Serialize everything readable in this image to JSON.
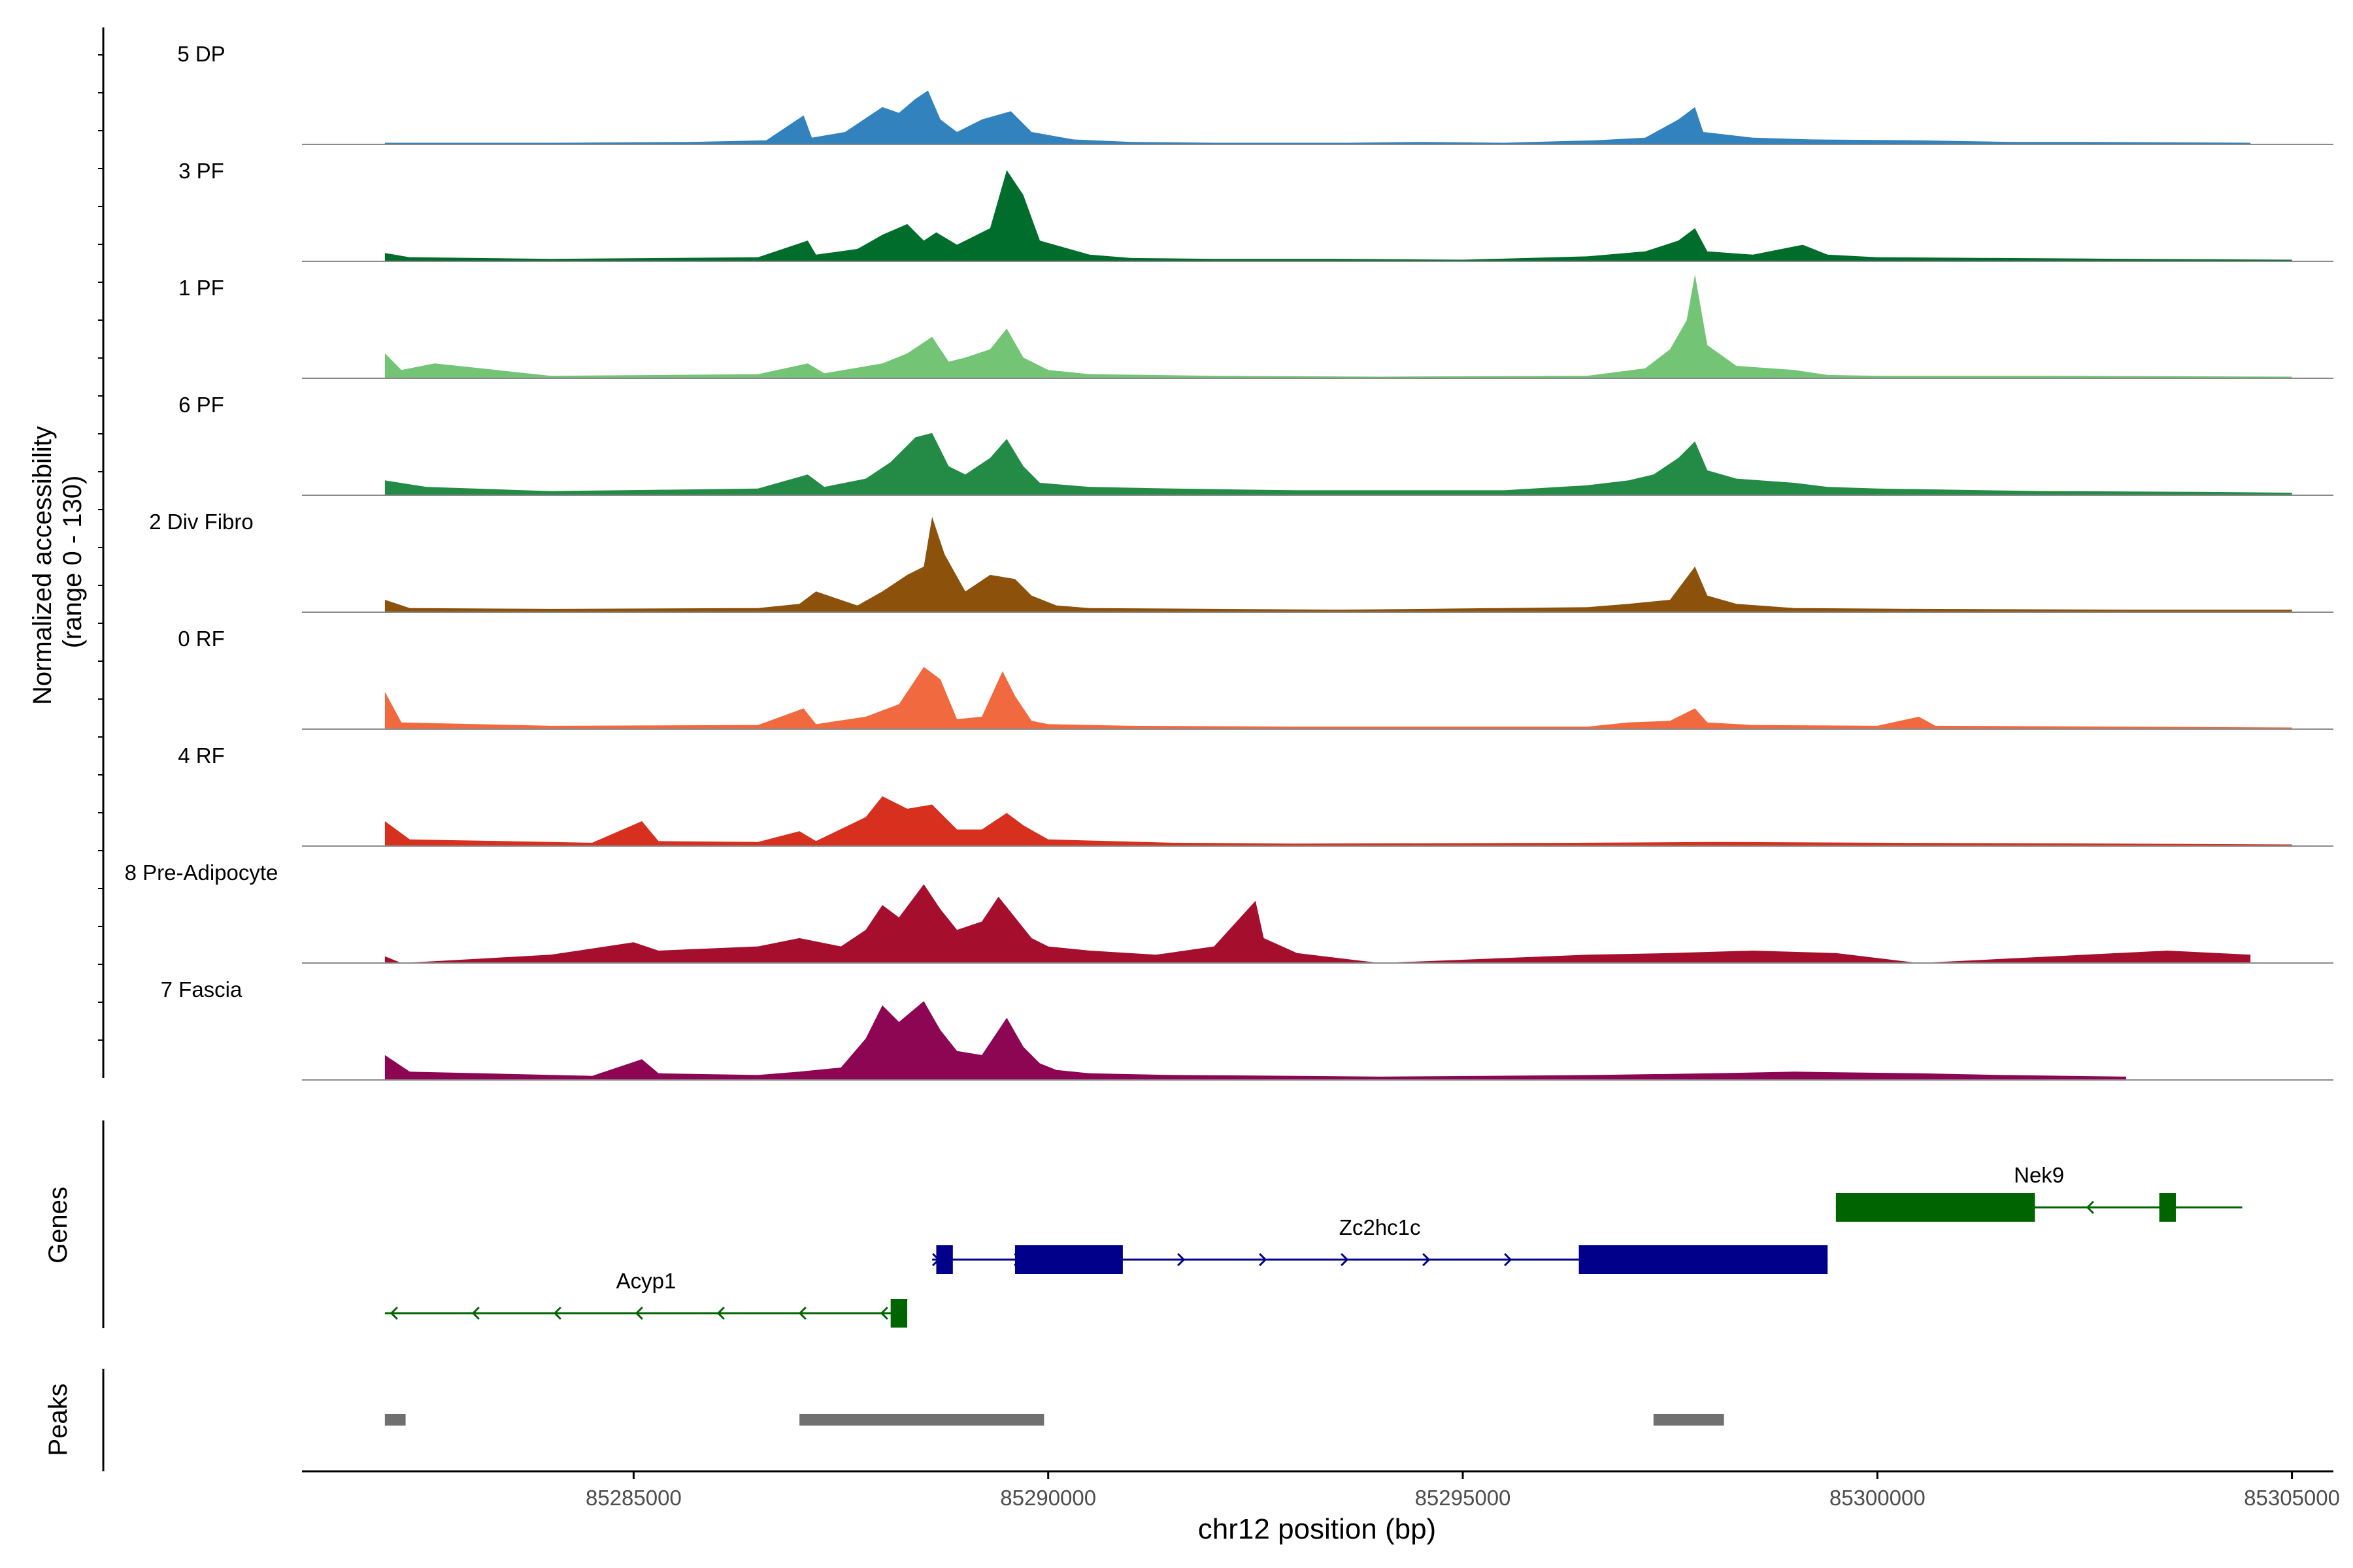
{
  "chart_data": {
    "type": "area",
    "y_axis_title_line1": "Normalized accessibility",
    "y_axis_title_line2": "(range 0 - 130)",
    "xlabel": "chr12 position (bp)",
    "xlim": [
      85281000,
      85305500
    ],
    "ylim": [
      0,
      130
    ],
    "x_ticks": [
      85285000,
      85290000,
      85295000,
      85300000,
      85305000
    ],
    "x_tick_labels": [
      "85285000",
      "85290000",
      "85295000",
      "85300000",
      "85305000"
    ],
    "tracks": [
      {
        "name": "5 DP",
        "color": "#3182BD",
        "x": [
          85282000,
          85284000,
          85285700,
          85286600,
          85287050,
          85287150,
          85287550,
          85288000,
          85288200,
          85288400,
          85288550,
          85288700,
          85288900,
          85289200,
          85289550,
          85289800,
          85290300,
          85291000,
          85292000,
          85293600,
          85294500,
          85295500,
          85296600,
          85297200,
          85297600,
          85297800,
          85297900,
          85298500,
          85299200,
          85300500,
          85301600,
          85302500,
          85304500
        ],
        "y": [
          2,
          2,
          3,
          5,
          35,
          8,
          15,
          45,
          38,
          55,
          65,
          30,
          15,
          30,
          40,
          15,
          6,
          3,
          2,
          2,
          3,
          2,
          5,
          8,
          30,
          45,
          15,
          8,
          6,
          5,
          3,
          3,
          2
        ]
      },
      {
        "name": "3 PF",
        "color": "#006D2C",
        "x": [
          85282000,
          85282300,
          85284000,
          85286500,
          85287100,
          85287200,
          85287700,
          85288000,
          85288300,
          85288500,
          85288650,
          85288900,
          85289300,
          85289500,
          85289700,
          85289900,
          85290500,
          85291000,
          85292000,
          85293500,
          85295000,
          85296500,
          85297200,
          85297600,
          85297800,
          85297950,
          85298500,
          85299100,
          85299400,
          85300000,
          85301500,
          85303000,
          85305000
        ],
        "y": [
          10,
          5,
          3,
          5,
          25,
          8,
          15,
          32,
          45,
          25,
          35,
          20,
          40,
          110,
          80,
          25,
          8,
          4,
          3,
          3,
          2,
          6,
          12,
          25,
          40,
          12,
          8,
          20,
          8,
          5,
          4,
          3,
          2
        ]
      },
      {
        "name": "1 PF",
        "color": "#74C476",
        "x": [
          85282000,
          85282200,
          85282600,
          85284000,
          85286500,
          85287100,
          85287300,
          85288000,
          85288300,
          85288600,
          85288800,
          85289000,
          85289300,
          85289500,
          85289700,
          85290000,
          85290500,
          85292000,
          85294000,
          85296500,
          85297200,
          85297500,
          85297700,
          85297800,
          85297950,
          85298300,
          85299000,
          85299400,
          85300000,
          85302000,
          85305000
        ],
        "y": [
          30,
          10,
          18,
          3,
          5,
          18,
          6,
          18,
          30,
          50,
          20,
          25,
          35,
          60,
          25,
          10,
          5,
          3,
          2,
          3,
          12,
          35,
          70,
          125,
          40,
          15,
          10,
          4,
          3,
          3,
          2
        ]
      },
      {
        "name": "6 PF",
        "color": "#238B45",
        "x": [
          85282000,
          85282500,
          85284000,
          85286500,
          85287100,
          85287300,
          85287800,
          85288100,
          85288400,
          85288600,
          85288800,
          85289000,
          85289300,
          85289500,
          85289700,
          85289900,
          85290500,
          85291500,
          85293000,
          85294000,
          85295500,
          85296500,
          85297000,
          85297300,
          85297600,
          85297800,
          85297950,
          85298300,
          85299000,
          85299400,
          85300000,
          85302000,
          85304000,
          85305000
        ],
        "y": [
          18,
          10,
          5,
          8,
          25,
          10,
          20,
          40,
          70,
          75,
          35,
          25,
          45,
          68,
          35,
          15,
          10,
          8,
          6,
          6,
          6,
          12,
          18,
          25,
          45,
          65,
          30,
          20,
          15,
          10,
          8,
          5,
          4,
          3
        ]
      },
      {
        "name": "2 Div Fibro",
        "color": "#8C510A",
        "x": [
          85282000,
          85282300,
          85284000,
          85286500,
          85287000,
          85287200,
          85287700,
          85288000,
          85288300,
          85288500,
          85288600,
          85288750,
          85289000,
          85289300,
          85289600,
          85289800,
          85290100,
          85290500,
          85292000,
          85293500,
          85296500,
          85297000,
          85297500,
          85297800,
          85297950,
          85298300,
          85299000,
          85300500,
          85303000,
          85305000
        ],
        "y": [
          15,
          5,
          4,
          5,
          10,
          25,
          8,
          25,
          45,
          55,
          115,
          70,
          25,
          45,
          40,
          20,
          8,
          5,
          4,
          3,
          6,
          10,
          15,
          55,
          20,
          10,
          5,
          4,
          3,
          3
        ]
      },
      {
        "name": "0 RF",
        "color": "#F16A3F",
        "x": [
          85282000,
          85282200,
          85284000,
          85286500,
          85287050,
          85287200,
          85287800,
          85288200,
          85288500,
          85288700,
          85288900,
          85289200,
          85289450,
          85289600,
          85289800,
          85290000,
          85291000,
          85293000,
          85296500,
          85297000,
          85297500,
          85297800,
          85297950,
          85298500,
          85300000,
          85300500,
          85300700,
          85303000,
          85305000
        ],
        "y": [
          45,
          8,
          4,
          5,
          25,
          6,
          15,
          30,
          75,
          60,
          12,
          15,
          70,
          40,
          10,
          6,
          4,
          3,
          3,
          8,
          10,
          25,
          8,
          5,
          4,
          15,
          4,
          3,
          2
        ]
      },
      {
        "name": "4 RF",
        "color": "#D7301F",
        "x": [
          85282000,
          85282300,
          85284500,
          85285100,
          85285300,
          85286500,
          85287000,
          85287200,
          85287800,
          85288000,
          85288300,
          85288600,
          85288900,
          85289200,
          85289500,
          85289700,
          85290000,
          85291500,
          85293000,
          85296500,
          85298000,
          85300000,
          85303000,
          85305000
        ],
        "y": [
          30,
          8,
          4,
          30,
          6,
          5,
          18,
          6,
          35,
          60,
          45,
          50,
          20,
          20,
          40,
          25,
          8,
          4,
          3,
          4,
          5,
          4,
          3,
          2
        ]
      },
      {
        "name": "8 Pre-Adipocyte",
        "color": "#A50F2D",
        "x": [
          85282000,
          85282200,
          85284000,
          85285000,
          85285300,
          85286500,
          85287000,
          85287500,
          85287800,
          85288000,
          85288200,
          85288500,
          85288700,
          85288900,
          85289200,
          85289400,
          85289600,
          85289800,
          85290000,
          85290500,
          85291300,
          85292000,
          85292500,
          85292600,
          85293000,
          85294000,
          85296500,
          85297500,
          85298500,
          85299500,
          85300500,
          85303500,
          85304500
        ],
        "y": [
          8,
          0,
          10,
          25,
          15,
          20,
          30,
          20,
          40,
          70,
          55,
          95,
          65,
          40,
          50,
          80,
          55,
          30,
          20,
          15,
          10,
          20,
          75,
          30,
          12,
          0,
          10,
          12,
          15,
          12,
          0,
          15,
          10
        ]
      },
      {
        "name": "7 Fascia",
        "color": "#8C0654",
        "x": [
          85282000,
          85282300,
          85284500,
          85285100,
          85285300,
          85286500,
          85287000,
          85287500,
          85287800,
          85288000,
          85288200,
          85288500,
          85288700,
          85288900,
          85289200,
          85289500,
          85289700,
          85289900,
          85290100,
          85290500,
          85291500,
          85293000,
          85294000,
          85296600,
          85298000,
          85299000,
          85300500,
          85301500,
          85303000
        ],
        "y": [
          30,
          10,
          5,
          25,
          8,
          6,
          10,
          15,
          50,
          90,
          70,
          95,
          60,
          35,
          30,
          75,
          40,
          20,
          12,
          8,
          6,
          5,
          4,
          6,
          8,
          10,
          8,
          6,
          4
        ]
      }
    ],
    "genes": [
      {
        "name": "Acyp1",
        "strand": "-",
        "start": 85282000,
        "end": 85288300,
        "exons": [
          [
            85288100,
            85288300
          ]
        ],
        "color": "#006400"
      },
      {
        "name": "Zc2hc1c",
        "strand": "+",
        "start": 85288600,
        "end": 85299400,
        "exons": [
          [
            85288650,
            85288850
          ],
          [
            85289600,
            85290900
          ],
          [
            85296400,
            85299400
          ]
        ],
        "color": "#00008B"
      },
      {
        "name": "Nek9",
        "strand": "-",
        "start": 85299500,
        "end": 85304400,
        "exons": [
          [
            85299500,
            85301900
          ],
          [
            85303400,
            85303600
          ]
        ],
        "color": "#006400"
      }
    ],
    "peaks": [
      {
        "start": 85282000,
        "end": 85282250
      },
      {
        "start": 85287000,
        "end": 85289950
      },
      {
        "start": 85297300,
        "end": 85298150
      }
    ],
    "gene_track_label": "Genes",
    "peak_track_label": "Peaks"
  }
}
